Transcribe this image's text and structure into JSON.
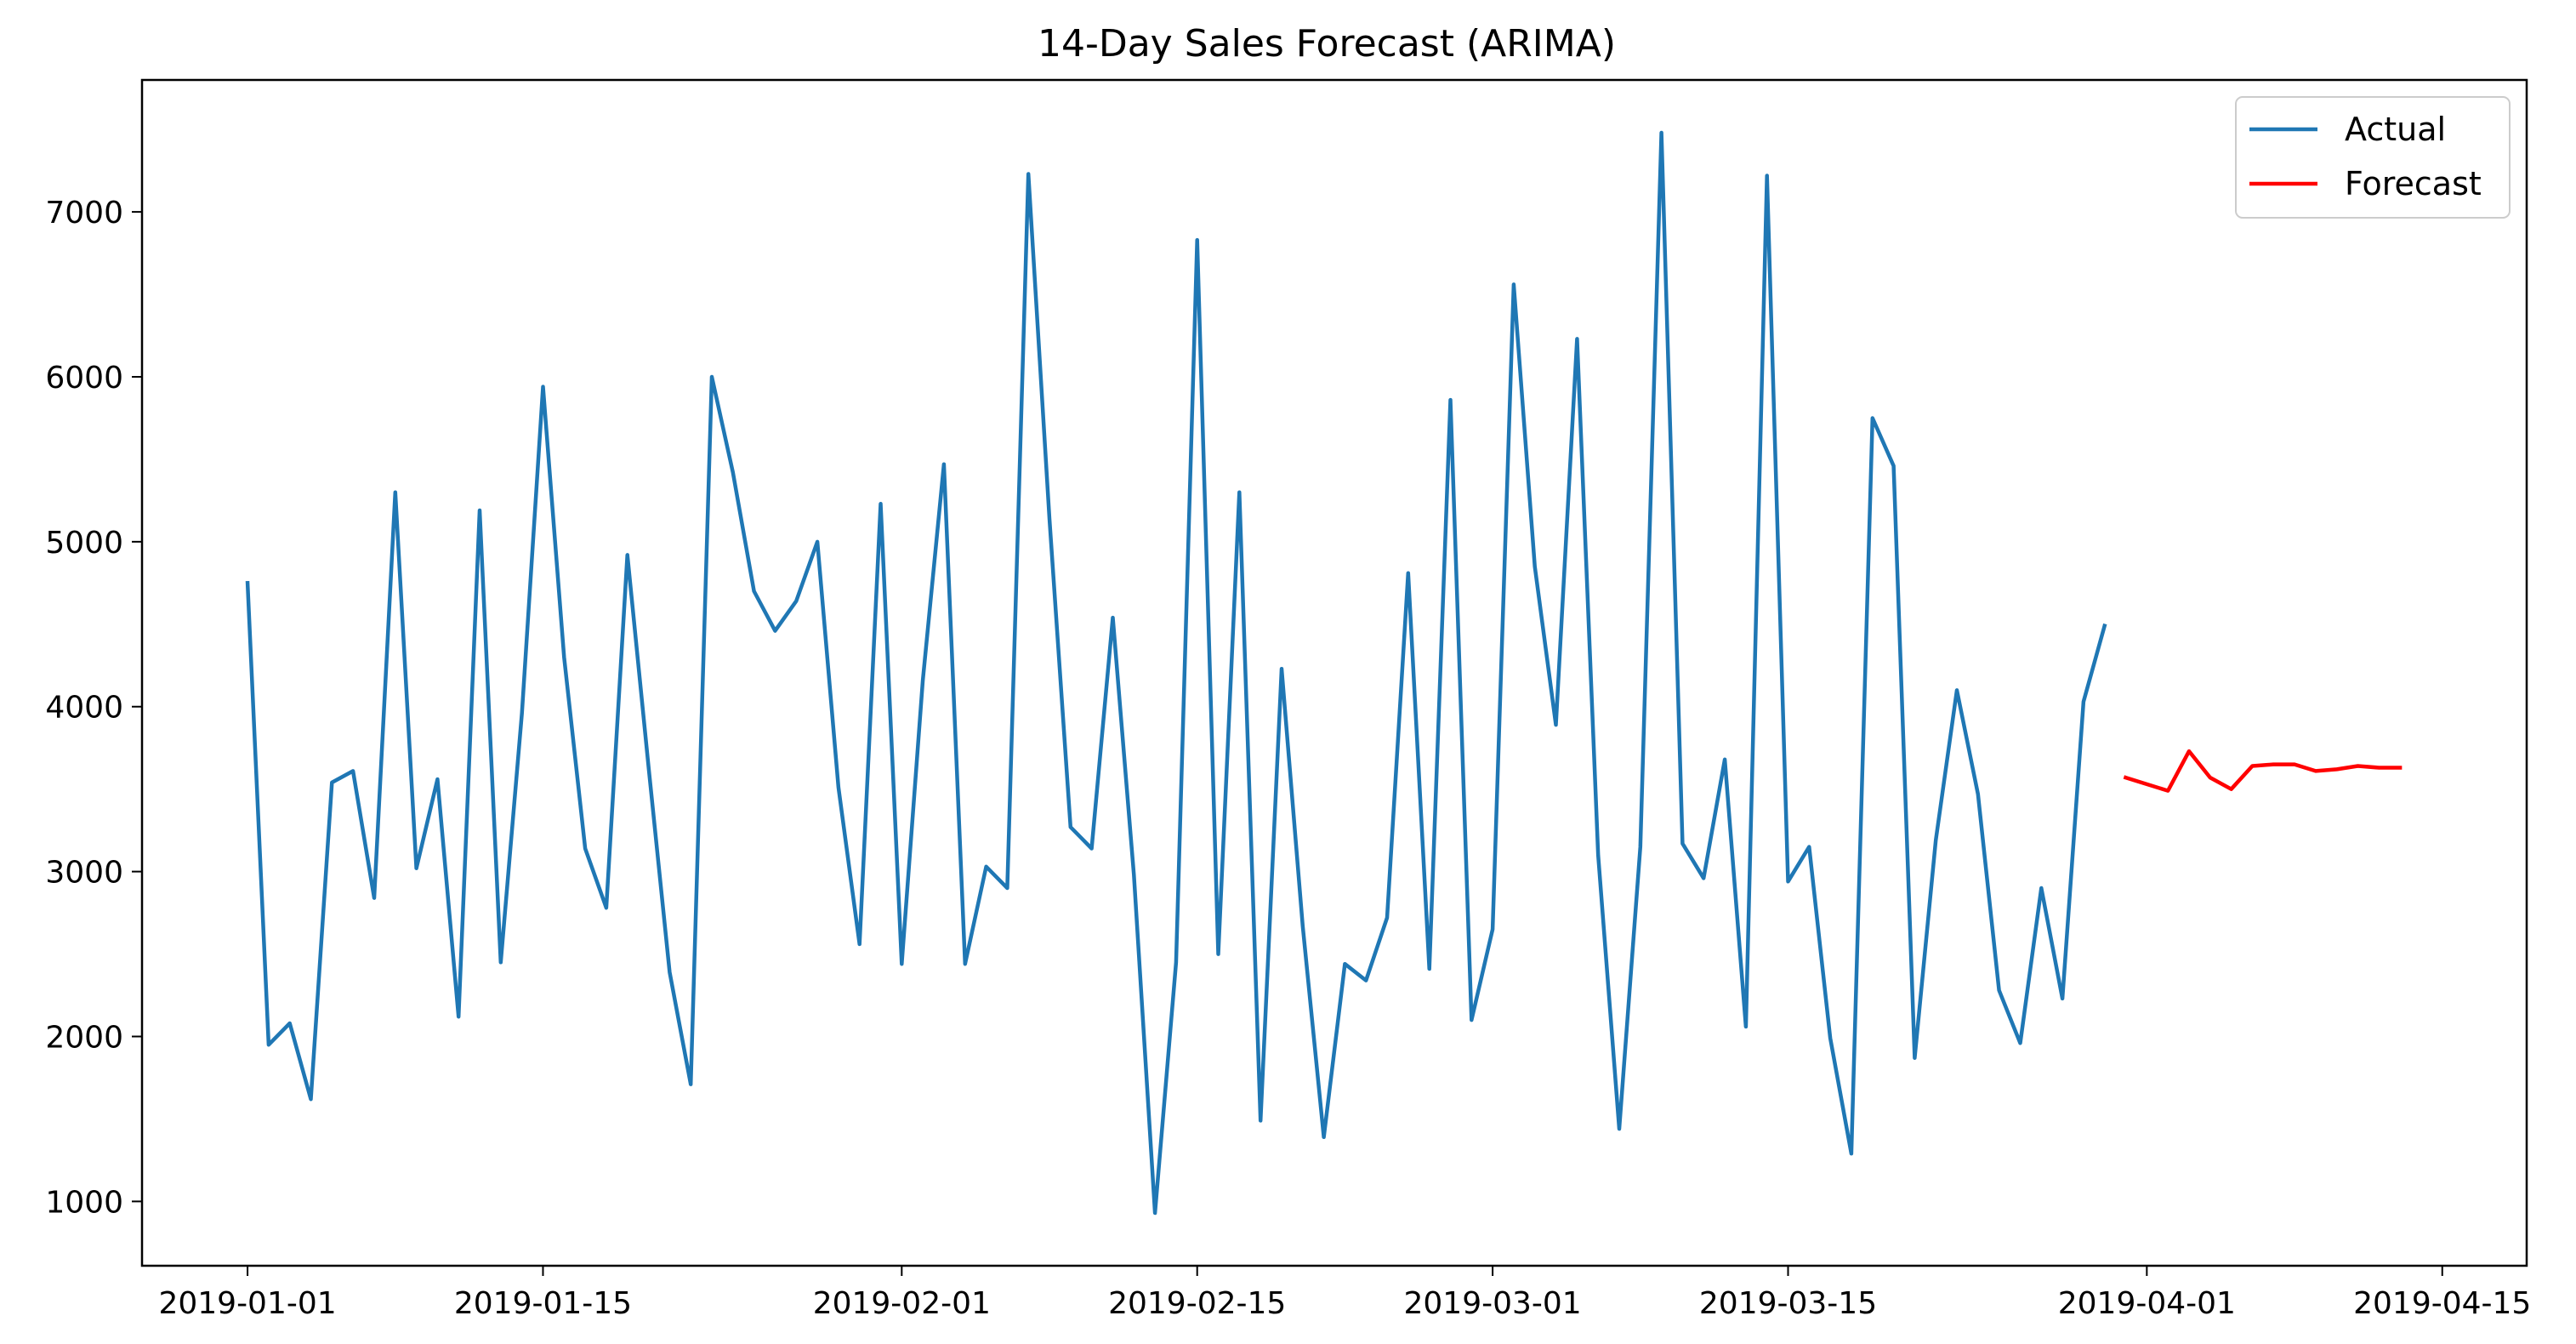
{
  "chart_data": {
    "type": "line",
    "title": "14-Day Sales Forecast (ARIMA)",
    "xlabel": "",
    "ylabel": "",
    "grid": false,
    "legend_position": "top-right",
    "xlim": [
      "2018-12-27",
      "2019-04-19"
    ],
    "ylim": [
      610,
      7800
    ],
    "x_ticks": [
      "2019-01-01",
      "2019-01-15",
      "2019-02-01",
      "2019-02-15",
      "2019-03-01",
      "2019-03-15",
      "2019-04-01",
      "2019-04-15"
    ],
    "y_ticks": [
      "1000",
      "2000",
      "3000",
      "4000",
      "5000",
      "6000",
      "7000"
    ],
    "series": [
      {
        "name": "Actual",
        "color": "#1f77b4",
        "start_date": "2019-01-01",
        "values": [
          4750,
          1950,
          2080,
          1620,
          3540,
          3610,
          2840,
          5300,
          3020,
          3560,
          2120,
          5190,
          2450,
          3960,
          5940,
          4300,
          3140,
          2780,
          4920,
          3640,
          2390,
          1710,
          6000,
          5420,
          4700,
          4460,
          4640,
          5000,
          3510,
          2560,
          5230,
          2440,
          4160,
          5470,
          2440,
          3030,
          2900,
          7230,
          5140,
          3270,
          3140,
          4540,
          2980,
          930,
          2450,
          6830,
          2500,
          5300,
          1490,
          4230,
          2670,
          1390,
          2440,
          2340,
          2720,
          4810,
          2410,
          5860,
          2100,
          2650,
          6560,
          4850,
          3890,
          6230,
          3100,
          1440,
          3150,
          7480,
          3170,
          2960,
          3680,
          2060,
          7220,
          2940,
          3150,
          1990,
          1290,
          5750,
          5460,
          1870,
          3190,
          4100,
          3470,
          2280,
          1960,
          2900,
          2230,
          4030,
          4490
        ]
      },
      {
        "name": "Forecast",
        "color": "#ff0000",
        "start_date": "2019-03-31",
        "values": [
          3570,
          3530,
          3490,
          3730,
          3570,
          3500,
          3640,
          3650,
          3650,
          3610,
          3620,
          3640,
          3630,
          3630
        ]
      }
    ]
  }
}
